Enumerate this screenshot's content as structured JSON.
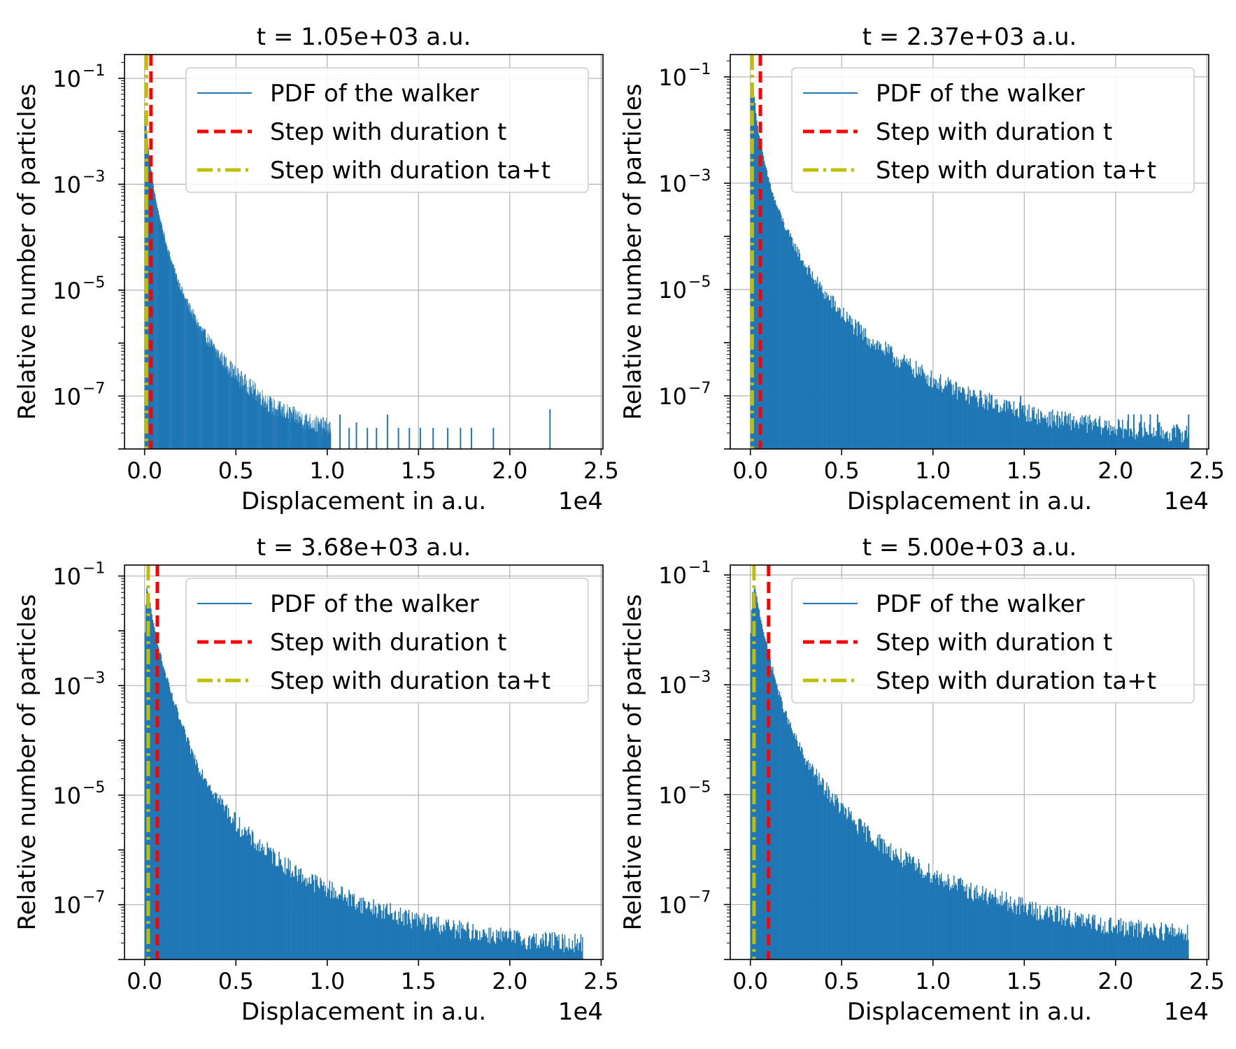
{
  "figure": {
    "legend": {
      "labels": [
        "PDF of the walker",
        "Step with duration t",
        "Step with duration ta+t"
      ],
      "placement": "top-right"
    },
    "colors": {
      "pdf": "#1f77b4",
      "step_t": "#ff0000",
      "step_ta_t": "#bfbf00",
      "grid": "#b0b0b0"
    }
  },
  "chart_data": [
    {
      "type": "area",
      "title": "t = 1.05e+03 a.u.",
      "xlabel": "Displacement in a.u.",
      "ylabel": "Relative number of particles",
      "x_offset_label": "1e4",
      "xlim": [
        -1100,
        25100
      ],
      "ylim_log10": [
        -8.0,
        -0.55
      ],
      "x_ticks": [
        0,
        5000,
        10000,
        15000,
        20000,
        25000
      ],
      "x_tick_labels": [
        "0.0",
        "0.5",
        "1.0",
        "1.5",
        "2.0",
        "2.5"
      ],
      "y_ticks_log10": [
        -1,
        -3,
        -5,
        -7
      ],
      "y_tick_labels": [
        "10",
        "10",
        "10",
        "10"
      ],
      "y_tick_exponents": [
        "−1",
        "−3",
        "−5",
        "−7"
      ],
      "grid": true,
      "y_scale": "log",
      "series": [
        {
          "name": "PDF of the walker",
          "kind": "histogram-envelope",
          "x": [
            0,
            100,
            200,
            300,
            500,
            800,
            1200,
            1700,
            2200,
            3000,
            4000,
            5000,
            6000,
            7000,
            8000,
            9500,
            10200
          ],
          "log10_y": [
            -1.6,
            -1.95,
            -2.3,
            -2.6,
            -3.1,
            -3.6,
            -4.15,
            -4.7,
            -5.15,
            -5.7,
            -6.2,
            -6.6,
            -6.9,
            -7.2,
            -7.35,
            -7.55,
            -7.6
          ]
        },
        {
          "name": "Step with duration t",
          "kind": "vline",
          "x": 350
        },
        {
          "name": "Step with duration ta+t",
          "kind": "vline",
          "x": 100
        }
      ],
      "sparse_spikes": {
        "x": [
          9800,
          10700,
          11200,
          11600,
          12200,
          12700,
          13300,
          13900,
          14500,
          15100,
          15800,
          16600,
          17300,
          17900,
          19100,
          22200
        ],
        "log10_y": [
          -7.6,
          -7.35,
          -7.6,
          -7.5,
          -7.6,
          -7.6,
          -7.35,
          -7.6,
          -7.6,
          -7.6,
          -7.6,
          -7.6,
          -7.6,
          -7.6,
          -7.6,
          -7.25
        ]
      }
    },
    {
      "type": "area",
      "title": "t = 2.37e+03 a.u.",
      "xlabel": "Displacement in a.u.",
      "ylabel": "Relative number of particles",
      "x_offset_label": "1e4",
      "xlim": [
        -1100,
        25100
      ],
      "ylim_log10": [
        -8.0,
        -0.58
      ],
      "x_ticks": [
        0,
        5000,
        10000,
        15000,
        20000,
        25000
      ],
      "x_tick_labels": [
        "0.0",
        "0.5",
        "1.0",
        "1.5",
        "2.0",
        "2.5"
      ],
      "y_ticks_log10": [
        -1,
        -3,
        -5,
        -7
      ],
      "y_tick_labels": [
        "10",
        "10",
        "10",
        "10"
      ],
      "y_tick_exponents": [
        "−1",
        "−3",
        "−5",
        "−7"
      ],
      "grid": true,
      "y_scale": "log",
      "series": [
        {
          "name": "PDF of the walker",
          "kind": "histogram-envelope",
          "x": [
            0,
            100,
            200,
            300,
            400,
            600,
            900,
            1300,
            2000,
            3000,
            4000,
            5000,
            6000,
            7000,
            8000,
            9000,
            10000,
            11000,
            12000,
            13000,
            14000,
            15000,
            16000,
            17000,
            18000,
            19000,
            20000,
            21000,
            22000,
            23000,
            24000
          ],
          "log10_y": [
            -1.4,
            -1.05,
            -1.35,
            -1.65,
            -1.95,
            -2.35,
            -2.8,
            -3.3,
            -3.9,
            -4.55,
            -5.05,
            -5.45,
            -5.8,
            -6.05,
            -6.3,
            -6.5,
            -6.7,
            -6.85,
            -7.0,
            -7.1,
            -7.2,
            -7.3,
            -7.4,
            -7.45,
            -7.5,
            -7.55,
            -7.6,
            -7.65,
            -7.65,
            -7.7,
            -7.7
          ]
        },
        {
          "name": "Step with duration t",
          "kind": "vline",
          "x": 550
        },
        {
          "name": "Step with duration ta+t",
          "kind": "vline",
          "x": 100
        }
      ],
      "sparse_spikes": {
        "x": [
          14800,
          20700,
          21000,
          21400,
          21900,
          22300,
          24000
        ],
        "log10_y": [
          -7.0,
          -7.35,
          -7.35,
          -7.35,
          -7.35,
          -7.35,
          -7.35
        ]
      }
    },
    {
      "type": "area",
      "title": "t = 3.68e+03 a.u.",
      "xlabel": "Displacement in a.u.",
      "ylabel": "Relative number of particles",
      "x_offset_label": "1e4",
      "xlim": [
        -1100,
        25100
      ],
      "ylim_log10": [
        -8.0,
        -0.8
      ],
      "x_ticks": [
        0,
        5000,
        10000,
        15000,
        20000,
        25000
      ],
      "x_tick_labels": [
        "0.0",
        "0.5",
        "1.0",
        "1.5",
        "2.0",
        "2.5"
      ],
      "y_ticks_log10": [
        -1,
        -3,
        -5,
        -7
      ],
      "y_tick_labels": [
        "10",
        "10",
        "10",
        "10"
      ],
      "y_tick_exponents": [
        "−1",
        "−3",
        "−5",
        "−7"
      ],
      "grid": true,
      "y_scale": "log",
      "series": [
        {
          "name": "PDF of the walker",
          "kind": "histogram-envelope",
          "x": [
            0,
            100,
            250,
            400,
            600,
            800,
            1100,
            1500,
            2000,
            2500,
            3000,
            4000,
            5000,
            6000,
            7000,
            8000,
            9000,
            10000,
            11000,
            12000,
            13000,
            14000,
            15000,
            16000,
            17000,
            18000,
            19000,
            20000,
            21000,
            22000,
            23000,
            24000
          ],
          "log10_y": [
            -2.3,
            -1.2,
            -1.4,
            -1.75,
            -2.05,
            -2.35,
            -2.75,
            -3.2,
            -3.7,
            -4.15,
            -4.5,
            -5.05,
            -5.5,
            -5.85,
            -6.1,
            -6.35,
            -6.55,
            -6.7,
            -6.85,
            -7.0,
            -7.1,
            -7.2,
            -7.3,
            -7.35,
            -7.45,
            -7.5,
            -7.55,
            -7.6,
            -7.65,
            -7.65,
            -7.7,
            -7.7
          ]
        },
        {
          "name": "Step with duration t",
          "kind": "vline",
          "x": 700
        },
        {
          "name": "Step with duration ta+t",
          "kind": "vline",
          "x": 200
        }
      ],
      "sparse_spikes": {
        "x": [],
        "log10_y": []
      }
    },
    {
      "type": "area",
      "title": "t = 5.00e+03 a.u.",
      "xlabel": "Displacement in a.u.",
      "ylabel": "Relative number of particles",
      "x_offset_label": "1e4",
      "xlim": [
        -1100,
        25100
      ],
      "ylim_log10": [
        -8.0,
        -0.82
      ],
      "x_ticks": [
        0,
        5000,
        10000,
        15000,
        20000,
        25000
      ],
      "x_tick_labels": [
        "0.0",
        "0.5",
        "1.0",
        "1.5",
        "2.0",
        "2.5"
      ],
      "y_ticks_log10": [
        -1,
        -3,
        -5,
        -7
      ],
      "y_tick_labels": [
        "10",
        "10",
        "10",
        "10"
      ],
      "y_tick_exponents": [
        "−1",
        "−3",
        "−5",
        "−7"
      ],
      "grid": true,
      "y_scale": "log",
      "series": [
        {
          "name": "PDF of the walker",
          "kind": "histogram-envelope",
          "x": [
            0,
            100,
            250,
            400,
            600,
            900,
            1200,
            1600,
            2000,
            2500,
            3000,
            4000,
            5000,
            6000,
            7000,
            8000,
            9000,
            10000,
            11000,
            12000,
            13000,
            14000,
            15000,
            16000,
            17000,
            18000,
            19000,
            20000,
            21000,
            22000,
            23000,
            24000
          ],
          "log10_y": [
            -2.3,
            -1.35,
            -1.25,
            -1.5,
            -1.85,
            -2.3,
            -2.7,
            -3.2,
            -3.6,
            -4.0,
            -4.35,
            -4.85,
            -5.25,
            -5.6,
            -5.85,
            -6.1,
            -6.3,
            -6.45,
            -6.6,
            -6.75,
            -6.85,
            -6.95,
            -7.05,
            -7.15,
            -7.2,
            -7.3,
            -7.35,
            -7.4,
            -7.45,
            -7.45,
            -7.5,
            -7.5
          ]
        },
        {
          "name": "Step with duration t",
          "kind": "vline",
          "x": 1000
        },
        {
          "name": "Step with duration ta+t",
          "kind": "vline",
          "x": 200
        }
      ],
      "sparse_spikes": {
        "x": [],
        "log10_y": []
      }
    }
  ]
}
